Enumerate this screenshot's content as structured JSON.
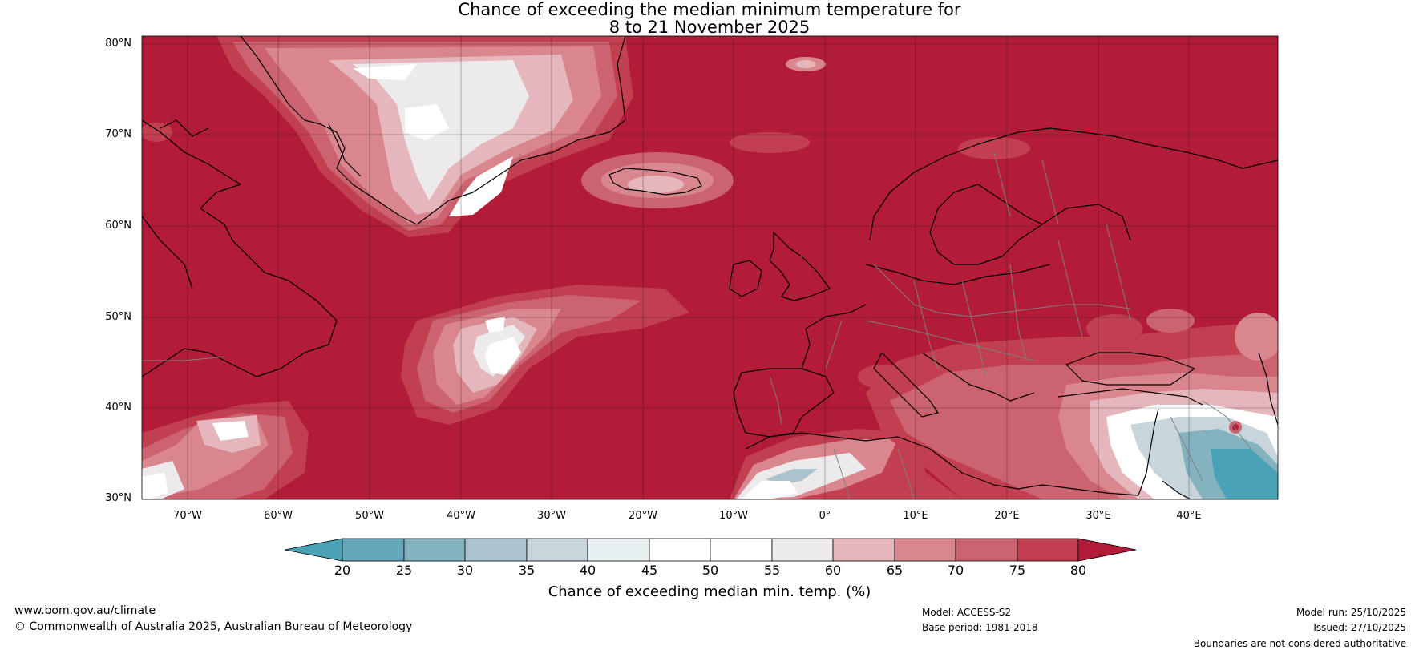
{
  "title": {
    "line1": "Chance of exceeding the median minimum temperature for",
    "line2": "8 to 21 November 2025"
  },
  "map": {
    "region": "North Atlantic and Europe",
    "lat_labels": [
      "80°N",
      "70°N",
      "60°N",
      "50°N",
      "40°N",
      "30°N"
    ],
    "lon_labels": [
      "70°W",
      "60°W",
      "50°W",
      "40°W",
      "30°W",
      "20°W",
      "10°W",
      "0°",
      "10°E",
      "20°E",
      "30°E",
      "40°E"
    ],
    "background_category": "80",
    "colors": {
      "c80": "#b21c38",
      "c75": "#c23f50",
      "c70": "#cc6370",
      "c65": "#d9868f",
      "c60": "#e5b6bc",
      "c55": "#edeaeb",
      "c50": "#ffffff",
      "c45": "#ffffff",
      "c40": "#e8f0f1",
      "c35": "#c8d6db",
      "c30": "#a9c4cc",
      "c25": "#85b2bf",
      "c20": "#64a9b9",
      "below20": "#4aa2b6",
      "coast": "#000000",
      "border": "#808080"
    }
  },
  "colorbar": {
    "ticks": [
      "20",
      "25",
      "30",
      "35",
      "40",
      "45",
      "50",
      "55",
      "60",
      "65",
      "70",
      "75",
      "80"
    ],
    "label": "Chance of exceeding median min. temp. (%)"
  },
  "footer": {
    "website": "www.bom.gov.au/climate",
    "copyright": "© Commonwealth of Australia 2025, Australian Bureau of Meteorology",
    "model": "Model: ACCESS-S2",
    "base_period": "Base period: 1981-2018",
    "model_run": "Model run: 25/10/2025",
    "issued": "Issued: 27/10/2025",
    "disclaimer": "Boundaries are not considered authoritative"
  }
}
